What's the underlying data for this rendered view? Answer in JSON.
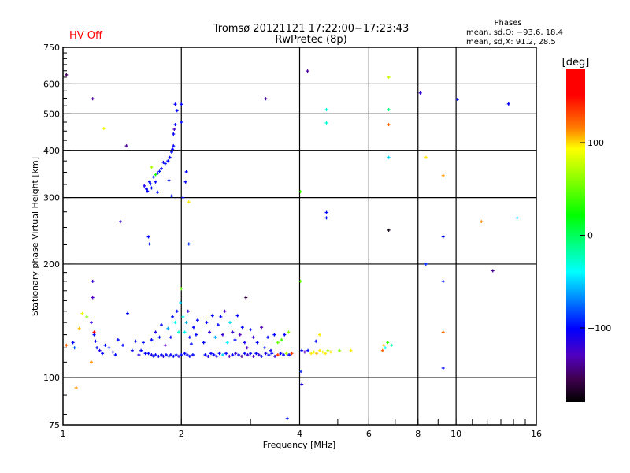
{
  "header": {
    "status": "HV Off",
    "status_color": "#ff0000",
    "title_line1": "Tromsø 20121121 17:22:00−17:23:43",
    "title_line2": "RwPretec (8p)",
    "stats_title": "Phases",
    "stats_o": "mean, sd,O: −93.6, 18.4",
    "stats_x": "mean, sd,X:  91.2, 28.5"
  },
  "chart_data": {
    "type": "scatter",
    "title": "Tromsø 20121121 17:22:00−17:23:43 RwPretec (8p)",
    "xlabel": "Frequency [MHz]",
    "ylabel": "Stationary phase Virtual Height [km]",
    "xscale": "log2",
    "yscale": "log",
    "xlim": [
      1,
      16
    ],
    "ylim": [
      75,
      750
    ],
    "x_ticks": [
      1,
      2,
      4,
      6,
      8,
      10,
      16
    ],
    "x_tick_labels": [
      "1",
      "2",
      "4",
      "6",
      "8",
      "10",
      "16"
    ],
    "y_ticks": [
      75,
      100,
      200,
      300,
      400,
      500,
      600,
      750
    ],
    "y_tick_labels": [
      "75",
      "100",
      "200",
      "300",
      "400",
      "500",
      "600",
      "750"
    ],
    "x_grid": [
      2,
      4,
      6,
      8,
      10
    ],
    "y_grid": [
      100,
      200,
      300,
      400,
      500,
      600
    ],
    "colorbar": {
      "label": "[deg]",
      "range": [
        -180,
        180
      ],
      "ticks": [
        100,
        0,
        -100
      ],
      "tick_labels": [
        "100",
        "0",
        "−100"
      ]
    },
    "point_fields": [
      "frequency_MHz",
      "height_km",
      "phase_deg"
    ],
    "points": [
      [
        1.02,
        634,
        -150
      ],
      [
        1.19,
        548,
        -140
      ],
      [
        1.27,
        457,
        90
      ],
      [
        1.45,
        411,
        -140
      ],
      [
        1.4,
        259,
        -120
      ],
      [
        1.65,
        236,
        -100
      ],
      [
        1.66,
        226,
        -100
      ],
      [
        2.09,
        292,
        100
      ],
      [
        2.09,
        226,
        -90
      ],
      [
        3.28,
        548,
        -140
      ],
      [
        4.19,
        649,
        -140
      ],
      [
        4.68,
        513,
        -30
      ],
      [
        4.68,
        473,
        -30
      ],
      [
        4.02,
        311,
        40
      ],
      [
        4.68,
        274,
        -100
      ],
      [
        4.68,
        265,
        -100
      ],
      [
        6.74,
        625,
        80
      ],
      [
        6.74,
        513,
        -10
      ],
      [
        6.74,
        468,
        130
      ],
      [
        6.74,
        383,
        -50
      ],
      [
        6.74,
        246,
        -175
      ],
      [
        8.11,
        568,
        -120
      ],
      [
        8.38,
        383,
        100
      ],
      [
        9.27,
        343,
        120
      ],
      [
        9.27,
        236,
        -100
      ],
      [
        8.38,
        200,
        -90
      ],
      [
        9.27,
        180,
        -100
      ],
      [
        10.08,
        546,
        -100
      ],
      [
        13.6,
        531,
        -100
      ],
      [
        11.6,
        259,
        120
      ],
      [
        14.3,
        265,
        -40
      ],
      [
        12.4,
        192,
        -140
      ],
      [
        4.02,
        180,
        50
      ],
      [
        9.27,
        132,
        130
      ],
      [
        9.27,
        106,
        -100
      ],
      [
        4.03,
        104,
        -90
      ],
      [
        4.05,
        96,
        -110
      ],
      [
        3.72,
        78,
        -100
      ],
      [
        1.08,
        94,
        120
      ],
      [
        1.19,
        180,
        -120
      ],
      [
        1.19,
        163,
        -130
      ],
      [
        2.92,
        163,
        -160
      ],
      [
        2.0,
        172,
        50
      ],
      [
        1.63,
        316,
        -100
      ],
      [
        1.66,
        330,
        -100
      ],
      [
        1.7,
        340,
        -95
      ],
      [
        1.74,
        348,
        -100
      ],
      [
        1.78,
        358,
        -100
      ],
      [
        1.82,
        369,
        -95
      ],
      [
        1.87,
        383,
        -100
      ],
      [
        1.89,
        396,
        -100
      ],
      [
        1.91,
        411,
        -100
      ],
      [
        1.91,
        442,
        -100
      ],
      [
        1.93,
        468,
        -100
      ],
      [
        1.95,
        510,
        -100
      ],
      [
        1.93,
        530,
        -100
      ],
      [
        2.0,
        475,
        -100
      ],
      [
        2.0,
        530,
        -100
      ],
      [
        2.05,
        330,
        -100
      ],
      [
        2.06,
        351,
        -100
      ],
      [
        1.86,
        333,
        -100
      ],
      [
        1.68,
        361,
        70
      ],
      [
        1.72,
        345,
        30
      ],
      [
        1.89,
        303,
        -100
      ],
      [
        2.02,
        300,
        -100
      ],
      [
        1.74,
        310,
        -100
      ],
      [
        1.61,
        322,
        -110
      ],
      [
        1.64,
        312,
        -100
      ],
      [
        1.67,
        326,
        -100
      ],
      [
        1.76,
        352,
        -95
      ],
      [
        1.8,
        372,
        -110
      ],
      [
        1.85,
        375,
        -100
      ],
      [
        1.9,
        403,
        -100
      ],
      [
        1.92,
        455,
        -130
      ],
      [
        1.68,
        318,
        -100
      ],
      [
        1.72,
        330,
        -100
      ],
      [
        1.02,
        122,
        130
      ],
      [
        1.06,
        124,
        -100
      ],
      [
        1.07,
        120,
        -80
      ],
      [
        1.1,
        135,
        110
      ],
      [
        1.12,
        148,
        90
      ],
      [
        1.15,
        145,
        60
      ],
      [
        1.18,
        140,
        -120
      ],
      [
        1.2,
        130,
        -100
      ],
      [
        1.21,
        125,
        -100
      ],
      [
        1.22,
        120,
        -100
      ],
      [
        1.24,
        118,
        -110
      ],
      [
        1.26,
        116,
        -100
      ],
      [
        1.18,
        110,
        120
      ],
      [
        1.2,
        132,
        150
      ],
      [
        1.28,
        122,
        -100
      ],
      [
        1.31,
        120,
        -100
      ],
      [
        1.34,
        117,
        -110
      ],
      [
        1.36,
        115,
        -100
      ],
      [
        1.38,
        126,
        -100
      ],
      [
        1.42,
        122,
        -100
      ],
      [
        1.46,
        148,
        -100
      ],
      [
        1.5,
        118,
        -100
      ],
      [
        1.53,
        125,
        -100
      ],
      [
        1.56,
        115,
        -110
      ],
      [
        1.58,
        118,
        -100
      ],
      [
        1.6,
        124,
        -100
      ],
      [
        1.62,
        116,
        -100
      ],
      [
        1.65,
        116,
        -100
      ],
      [
        1.68,
        115,
        -110
      ],
      [
        1.7,
        114,
        -100
      ],
      [
        1.72,
        115,
        -100
      ],
      [
        1.75,
        114,
        -105
      ],
      [
        1.78,
        115,
        -100
      ],
      [
        1.8,
        114,
        -110
      ],
      [
        1.83,
        115,
        -100
      ],
      [
        1.86,
        114,
        -100
      ],
      [
        1.88,
        115,
        -105
      ],
      [
        1.91,
        114,
        -100
      ],
      [
        1.94,
        115,
        -100
      ],
      [
        1.97,
        114,
        -110
      ],
      [
        2.0,
        115,
        -100
      ],
      [
        2.04,
        116,
        -100
      ],
      [
        2.07,
        115,
        -105
      ],
      [
        2.1,
        114,
        -100
      ],
      [
        2.14,
        115,
        -100
      ],
      [
        2.3,
        115,
        -100
      ],
      [
        2.34,
        114,
        -110
      ],
      [
        2.38,
        116,
        -100
      ],
      [
        2.42,
        115,
        -100
      ],
      [
        2.46,
        114,
        -105
      ],
      [
        2.5,
        116,
        -100
      ],
      [
        2.55,
        115,
        -50
      ],
      [
        2.6,
        116,
        -100
      ],
      [
        2.65,
        114,
        -130
      ],
      [
        2.7,
        115,
        -100
      ],
      [
        2.75,
        116,
        -120
      ],
      [
        2.8,
        115,
        -100
      ],
      [
        2.85,
        114,
        -140
      ],
      [
        2.9,
        116,
        -100
      ],
      [
        2.95,
        115,
        -120
      ],
      [
        3.0,
        116,
        -100
      ],
      [
        3.05,
        114,
        -130
      ],
      [
        3.1,
        116,
        -100
      ],
      [
        3.15,
        115,
        -120
      ],
      [
        3.2,
        114,
        -100
      ],
      [
        3.28,
        116,
        -110
      ],
      [
        3.34,
        115,
        -100
      ],
      [
        3.4,
        116,
        -100
      ],
      [
        3.46,
        114,
        -120
      ],
      [
        3.52,
        115,
        140
      ],
      [
        3.58,
        116,
        -100
      ],
      [
        3.64,
        115,
        -100
      ],
      [
        3.7,
        116,
        70
      ],
      [
        3.76,
        115,
        -100
      ],
      [
        3.82,
        116,
        140
      ],
      [
        1.68,
        126,
        -100
      ],
      [
        1.72,
        132,
        -110
      ],
      [
        1.76,
        128,
        -100
      ],
      [
        1.78,
        138,
        -100
      ],
      [
        1.82,
        122,
        -130
      ],
      [
        1.85,
        135,
        -60
      ],
      [
        1.88,
        128,
        -100
      ],
      [
        1.9,
        145,
        -100
      ],
      [
        1.93,
        140,
        -40
      ],
      [
        1.95,
        150,
        -100
      ],
      [
        1.97,
        132,
        -30
      ],
      [
        1.99,
        158,
        -50
      ],
      [
        2.02,
        145,
        -40
      ],
      [
        2.04,
        132,
        -40
      ],
      [
        2.06,
        140,
        -60
      ],
      [
        2.08,
        150,
        -120
      ],
      [
        2.1,
        128,
        -100
      ],
      [
        2.12,
        123,
        -100
      ],
      [
        2.15,
        136,
        -100
      ],
      [
        2.18,
        130,
        -100
      ],
      [
        2.2,
        142,
        -100
      ],
      [
        2.28,
        124,
        -100
      ],
      [
        2.32,
        140,
        -100
      ],
      [
        2.36,
        132,
        -120
      ],
      [
        2.4,
        146,
        -100
      ],
      [
        2.44,
        128,
        -60
      ],
      [
        2.48,
        138,
        -100
      ],
      [
        2.52,
        145,
        -100
      ],
      [
        2.55,
        130,
        -120
      ],
      [
        2.58,
        150,
        -130
      ],
      [
        2.62,
        124,
        -40
      ],
      [
        2.66,
        140,
        -50
      ],
      [
        2.7,
        132,
        -120
      ],
      [
        2.74,
        126,
        -100
      ],
      [
        2.78,
        146,
        -100
      ],
      [
        2.82,
        130,
        -130
      ],
      [
        2.86,
        136,
        -100
      ],
      [
        2.9,
        124,
        -110
      ],
      [
        2.94,
        120,
        -130
      ],
      [
        3.0,
        134,
        -100
      ],
      [
        3.05,
        128,
        -120
      ],
      [
        3.12,
        124,
        -100
      ],
      [
        3.2,
        136,
        -130
      ],
      [
        3.26,
        120,
        -100
      ],
      [
        3.32,
        128,
        -100
      ],
      [
        3.38,
        118,
        -100
      ],
      [
        3.45,
        130,
        -100
      ],
      [
        3.52,
        124,
        50
      ],
      [
        3.6,
        126,
        40
      ],
      [
        3.66,
        130,
        -100
      ],
      [
        3.75,
        132,
        60
      ],
      [
        4.05,
        118,
        -100
      ],
      [
        4.12,
        117,
        -130
      ],
      [
        4.2,
        118,
        -100
      ],
      [
        4.28,
        116,
        100
      ],
      [
        4.35,
        117,
        90
      ],
      [
        4.42,
        116,
        110
      ],
      [
        4.5,
        118,
        100
      ],
      [
        4.58,
        117,
        90
      ],
      [
        4.65,
        116,
        100
      ],
      [
        4.72,
        118,
        70
      ],
      [
        4.8,
        117,
        100
      ],
      [
        4.5,
        130,
        100
      ],
      [
        4.4,
        125,
        -100
      ],
      [
        5.05,
        118,
        60
      ],
      [
        5.4,
        118,
        100
      ],
      [
        6.5,
        118,
        130
      ],
      [
        6.55,
        122,
        110
      ],
      [
        6.6,
        120,
        -40
      ],
      [
        6.7,
        124,
        40
      ],
      [
        6.85,
        122,
        -20
      ]
    ]
  }
}
